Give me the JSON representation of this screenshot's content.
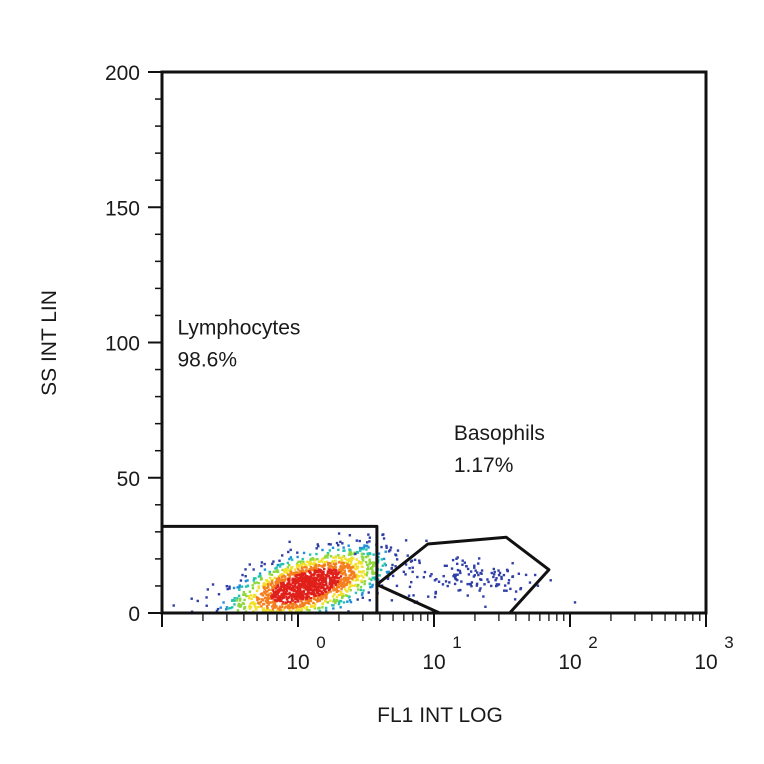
{
  "chart_data": {
    "type": "scatter",
    "title": "",
    "xlabel": "FL1 INT LOG",
    "ylabel": "SS INT LIN",
    "x_scale": "log",
    "xlim": [
      0.1,
      1000
    ],
    "ylim": [
      0,
      200
    ],
    "x_ticks": [
      {
        "value": 1,
        "base": "10",
        "exp": "0"
      },
      {
        "value": 10,
        "base": "10",
        "exp": "1"
      },
      {
        "value": 100,
        "base": "10",
        "exp": "2"
      },
      {
        "value": 1000,
        "base": "10",
        "exp": "3"
      }
    ],
    "y_ticks": [
      {
        "value": 0,
        "label": "0"
      },
      {
        "value": 50,
        "label": "50"
      },
      {
        "value": 100,
        "label": "100"
      },
      {
        "value": 150,
        "label": "150"
      },
      {
        "value": 200,
        "label": "200"
      }
    ],
    "grid": false,
    "gates": [
      {
        "name": "Lymphocytes",
        "percent": "98.6%",
        "shape": "rectangle",
        "vertices": [
          [
            0.1,
            0
          ],
          [
            0.1,
            32
          ],
          [
            3.8,
            32
          ],
          [
            3.8,
            0
          ]
        ],
        "label_anchor": [
          0.13,
          103
        ]
      },
      {
        "name": "Basophils",
        "percent": "1.17%",
        "shape": "polygon",
        "vertices": [
          [
            3.8,
            10.5
          ],
          [
            9.0,
            25.5
          ],
          [
            34,
            28
          ],
          [
            70,
            16
          ],
          [
            36,
            0
          ],
          [
            11,
            0
          ]
        ],
        "label_anchor": [
          14,
          64
        ]
      }
    ],
    "populations": [
      {
        "name": "Lymphocytes",
        "center": [
          1.15,
          10
        ],
        "spread_log10": 0.28,
        "spread_y": 5.5,
        "tilt": 0.13
      },
      {
        "name": "Basophils",
        "center": [
          20,
          13
        ],
        "spread_log10": 0.26,
        "spread_y": 4.2,
        "tilt": 0
      }
    ],
    "density_colors": [
      "#2f3fa6",
      "#1f8fd8",
      "#22c3b0",
      "#8dd83a",
      "#f2e02a",
      "#f57f1f",
      "#e0201a"
    ]
  }
}
